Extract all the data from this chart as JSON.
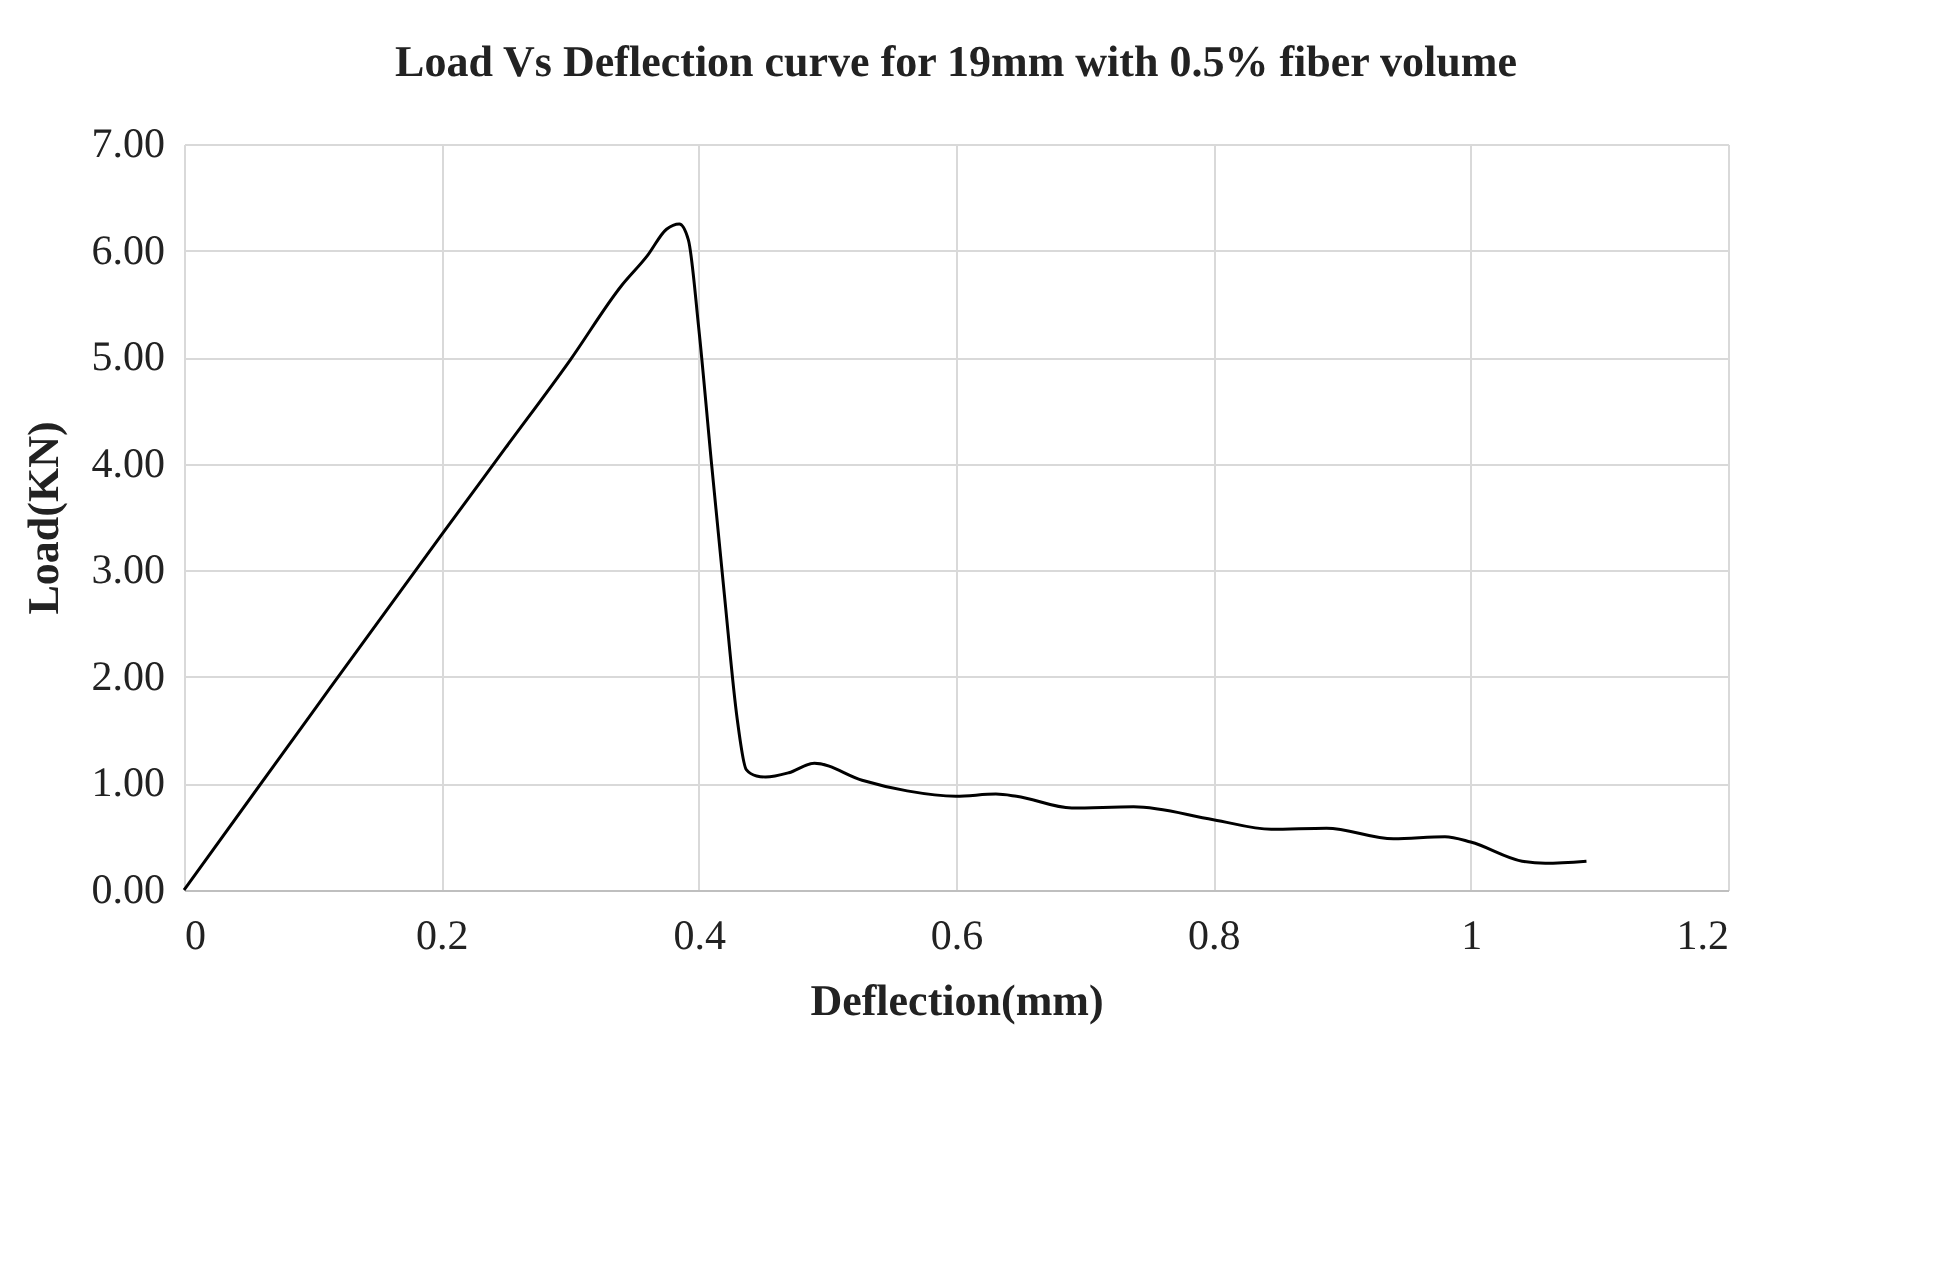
{
  "chart_data": {
    "type": "line",
    "title": "Load Vs Deflection curve for 19mm with 0.5% fiber volume",
    "xlabel": "Deflection(mm)",
    "ylabel": "Load(KN)",
    "series": [
      {
        "color": "#000000",
        "x": [
          0,
          0.1,
          0.2,
          0.25,
          0.3,
          0.34,
          0.36,
          0.375,
          0.385,
          0.392,
          0.4,
          0.41,
          0.42,
          0.43,
          0.437,
          0.445,
          0.452,
          0.47,
          0.49,
          0.527,
          0.562,
          0.6,
          0.631,
          0.647,
          0.69,
          0.738,
          0.8,
          0.845,
          0.888,
          0.94,
          0.98,
          1.0,
          1.04,
          1.058,
          1.09
        ],
        "values": [
          0,
          1.67,
          3.33,
          4.15,
          4.97,
          5.67,
          5.95,
          6.2,
          6.25,
          6.1,
          5.28,
          4.0,
          2.77,
          1.6,
          1.13,
          1.07,
          1.06,
          1.1,
          1.19,
          1.03,
          0.93,
          0.88,
          0.9,
          0.88,
          0.77,
          0.78,
          0.66,
          0.57,
          0.58,
          0.48,
          0.5,
          0.45,
          0.27,
          0.25,
          0.27
        ]
      }
    ],
    "xlim": [
      0,
      1.2
    ],
    "xticks": [
      0,
      0.2,
      0.4,
      0.6,
      0.8,
      1,
      1.2
    ],
    "ylim": [
      0,
      7
    ],
    "yticks": [
      {
        "value": 0,
        "label": "0.00"
      },
      {
        "value": 1,
        "label": "1.00"
      },
      {
        "value": 2,
        "label": "2.00"
      },
      {
        "value": 3,
        "label": "3.00"
      },
      {
        "value": 4,
        "label": "4.00"
      },
      {
        "value": 5,
        "label": "5.00"
      },
      {
        "value": 6,
        "label": "6.00"
      },
      {
        "value": 7,
        "label": "7.00"
      }
    ],
    "grid": true,
    "marker": "none",
    "line_style": "solid"
  }
}
